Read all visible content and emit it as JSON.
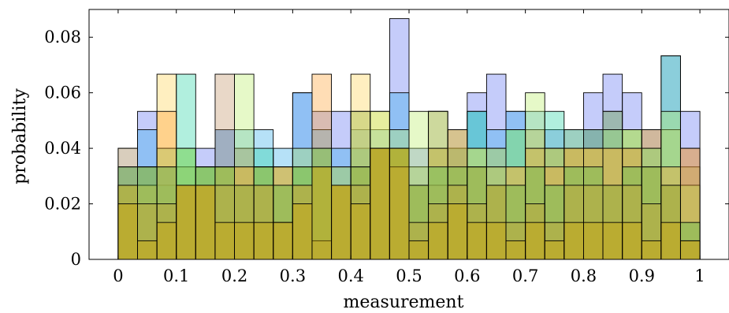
{
  "chart_data": {
    "type": "bar",
    "subtype": "overlaid-histogram",
    "xlabel": "measurement",
    "ylabel": "probability",
    "xlim": [
      -0.05,
      1.05
    ],
    "ylim": [
      0,
      0.09
    ],
    "xticks": [
      "0",
      "0.1",
      "0.2",
      "0.3",
      "0.4",
      "0.5",
      "0.6",
      "0.7",
      "0.8",
      "0.9",
      "1"
    ],
    "yticks": [
      "0",
      "0.02",
      "0.04",
      "0.06",
      "0.08"
    ],
    "grid": false,
    "legend": "none",
    "bin_width": 0.0333,
    "bin_starts": [
      0,
      0.0333,
      0.0667,
      0.1,
      0.1333,
      0.1667,
      0.2,
      0.2333,
      0.2667,
      0.3,
      0.3333,
      0.3667,
      0.4,
      0.4333,
      0.4667,
      0.5,
      0.5333,
      0.5667,
      0.6,
      0.6333,
      0.6667,
      0.7,
      0.7333,
      0.7667,
      0.8,
      0.8333,
      0.8667,
      0.9,
      0.9333,
      0.9667
    ],
    "series": [
      {
        "color": "#5a6ef0",
        "values": [
          0.04,
          0.0533,
          0.0333,
          0.0267,
          0.04,
          0.0467,
          0.04,
          0.0333,
          0.0333,
          0.06,
          0.0533,
          0.0533,
          0.04,
          0.04,
          0.0867,
          0.04,
          0.0533,
          0.0467,
          0.06,
          0.0667,
          0.0533,
          0.0467,
          0.0467,
          0.0467,
          0.06,
          0.0667,
          0.06,
          0.0467,
          0.0733,
          0.0533
        ]
      },
      {
        "color": "#2ea8e8",
        "values": [
          0.0333,
          0.0467,
          0.04,
          0.0333,
          0.0333,
          0.0467,
          0.0467,
          0.0467,
          0.04,
          0.06,
          0.0467,
          0.04,
          0.0467,
          0.0467,
          0.06,
          0.0333,
          0.04,
          0.04,
          0.0533,
          0.0467,
          0.0533,
          0.0533,
          0.04,
          0.0467,
          0.0467,
          0.0467,
          0.04,
          0.04,
          0.0467,
          0.0333
        ]
      },
      {
        "color": "#20d0a0",
        "values": [
          0.0267,
          0.0333,
          0.0267,
          0.0667,
          0.0333,
          0.0333,
          0.0333,
          0.04,
          0.0267,
          0.0333,
          0.0333,
          0.0333,
          0.04,
          0.04,
          0.04,
          0.0267,
          0.04,
          0.04,
          0.0533,
          0.04,
          0.0467,
          0.04,
          0.0533,
          0.04,
          0.0467,
          0.0533,
          0.0467,
          0.04,
          0.0733,
          0.0267
        ]
      },
      {
        "color": "#ffd24a",
        "values": [
          0.04,
          0.0333,
          0.0667,
          0.0333,
          0.0333,
          0.0333,
          0.0333,
          0.0333,
          0.0333,
          0.0333,
          0.0333,
          0.0333,
          0.0667,
          0.0533,
          0.04,
          0.0333,
          0.0533,
          0.0333,
          0.04,
          0.04,
          0.0333,
          0.0467,
          0.04,
          0.04,
          0.04,
          0.04,
          0.0467,
          0.0467,
          0.0467,
          0.0333
        ]
      },
      {
        "color": "#c09060",
        "values": [
          0.0333,
          0.0333,
          0.0333,
          0.0267,
          0.0333,
          0.0667,
          0.04,
          0.0333,
          0.0267,
          0.0333,
          0.0333,
          0.0267,
          0.0533,
          0.04,
          0.04,
          0.0267,
          0.0267,
          0.04,
          0.0333,
          0.0333,
          0.0267,
          0.0333,
          0.04,
          0.04,
          0.0467,
          0.0533,
          0.04,
          0.0467,
          0.0267,
          0.04
        ]
      },
      {
        "color": "#b8ee60",
        "values": [
          0.0267,
          0.0267,
          0.04,
          0.04,
          0.0333,
          0.0333,
          0.0667,
          0.0333,
          0.0333,
          0.04,
          0.04,
          0.0267,
          0.0533,
          0.0533,
          0.0467,
          0.0533,
          0.0533,
          0.0467,
          0.04,
          0.0333,
          0.0467,
          0.06,
          0.04,
          0.0467,
          0.04,
          0.0467,
          0.0467,
          0.04,
          0.0533,
          0.0267
        ]
      },
      {
        "color": "#ff9e2a",
        "values": [
          0.0267,
          0.0267,
          0.0533,
          0.0267,
          0.0267,
          0.0333,
          0.0333,
          0.0267,
          0.0333,
          0.0267,
          0.0667,
          0.0267,
          0.0333,
          0.04,
          0.04,
          0.0267,
          0.04,
          0.0467,
          0.0333,
          0.0267,
          0.0333,
          0.04,
          0.0333,
          0.04,
          0.04,
          0.04,
          0.04,
          0.0333,
          0.0333,
          0.04
        ]
      },
      {
        "color": "#4cc050",
        "values": [
          0.0333,
          0.0333,
          0.0333,
          0.04,
          0.0333,
          0.0333,
          0.0267,
          0.0333,
          0.0267,
          0.0333,
          0.04,
          0.0267,
          0.0333,
          0.04,
          0.04,
          0.0267,
          0.0333,
          0.0333,
          0.0333,
          0.0267,
          0.0267,
          0.0333,
          0.0267,
          0.0333,
          0.0333,
          0.0267,
          0.0333,
          0.0333,
          0.0267,
          0.0133
        ]
      },
      {
        "color": "#c8a030",
        "values": [
          0.0267,
          0.02,
          0.02,
          0.0267,
          0.0267,
          0.0267,
          0.0267,
          0.0267,
          0.0133,
          0.0267,
          0.0067,
          0.0267,
          0.0267,
          0.04,
          0.0333,
          0.0133,
          0.02,
          0.0267,
          0.02,
          0.0267,
          0.0133,
          0.02,
          0.0133,
          0.0267,
          0.0267,
          0.0267,
          0.0267,
          0.02,
          0.0267,
          0.0067
        ]
      },
      {
        "color": "#d4a000",
        "values": [
          0.02,
          0.0067,
          0.0133,
          0.0267,
          0.0267,
          0.0133,
          0.0133,
          0.0133,
          0.0133,
          0.02,
          0.0333,
          0.0267,
          0.02,
          0.04,
          0.04,
          0.0067,
          0.0133,
          0.02,
          0.0133,
          0.0133,
          0.0067,
          0.0133,
          0.0067,
          0.0133,
          0.0133,
          0.0133,
          0.0133,
          0.0067,
          0.0133,
          0.0067
        ]
      }
    ]
  }
}
